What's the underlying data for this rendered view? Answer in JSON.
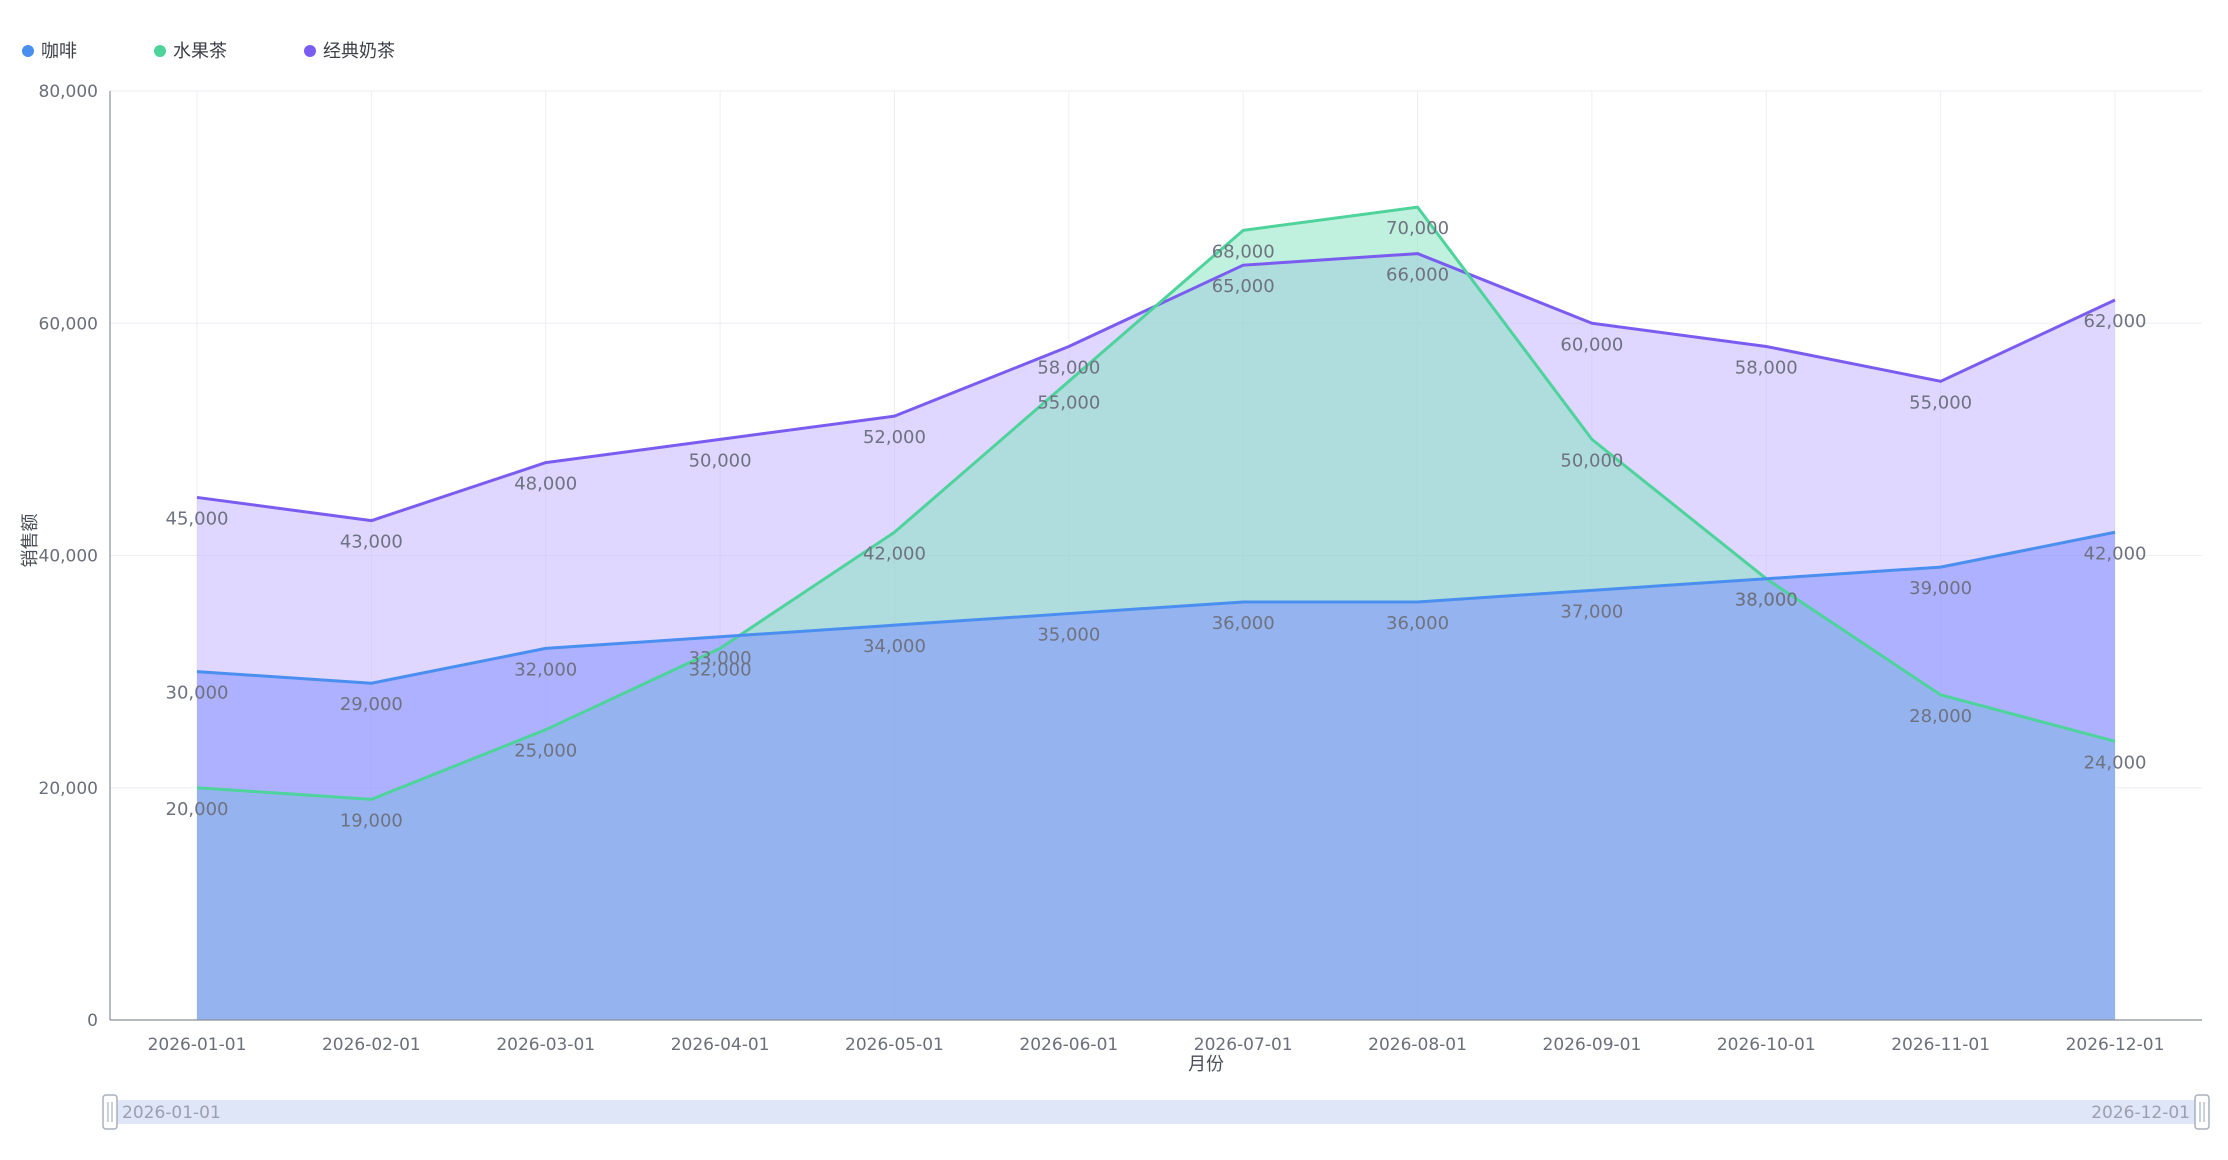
{
  "chart_data": {
    "type": "area",
    "categories": [
      "2026-01-01",
      "2026-02-01",
      "2026-03-01",
      "2026-04-01",
      "2026-05-01",
      "2026-06-01",
      "2026-07-01",
      "2026-08-01",
      "2026-09-01",
      "2026-10-01",
      "2026-11-01",
      "2026-12-01"
    ],
    "series": [
      {
        "name": "咖啡",
        "color": "#4a8ff0",
        "fill": "#7b8cff",
        "values": [
          30000,
          29000,
          32000,
          33000,
          34000,
          35000,
          36000,
          36000,
          37000,
          38000,
          39000,
          42000
        ]
      },
      {
        "name": "水果茶",
        "color": "#4dd39b",
        "fill": "#7fe4bd",
        "values": [
          20000,
          19000,
          25000,
          32000,
          42000,
          55000,
          68000,
          70000,
          50000,
          38000,
          28000,
          24000
        ]
      },
      {
        "name": "经典奶茶",
        "color": "#7b5cf0",
        "fill": "#bfb0ff",
        "values": [
          45000,
          43000,
          48000,
          50000,
          52000,
          58000,
          65000,
          66000,
          60000,
          58000,
          55000,
          62000
        ]
      }
    ],
    "xlabel": "月份",
    "ylabel": "销售额",
    "ylim": [
      0,
      80000
    ],
    "yticks": [
      "0",
      "20,000",
      "40,000",
      "60,000",
      "80,000"
    ],
    "grid": true,
    "legend": "top-left",
    "slider": {
      "start_label": "2026-01-01",
      "end_label": "2026-12-01"
    }
  }
}
